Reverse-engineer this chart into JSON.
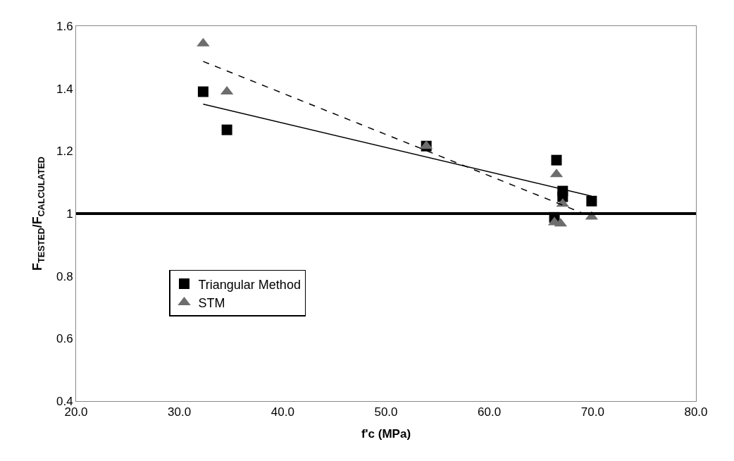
{
  "chart_data": {
    "type": "scatter",
    "xlabel": "f'c (MPa)",
    "ylabel": "F$_{TESTED}$/F$_{CALCULATED}$",
    "xlim": [
      20,
      80
    ],
    "xticks": [
      {
        "value": 20,
        "label": "20.0"
      },
      {
        "value": 30,
        "label": "30.0"
      },
      {
        "value": 40,
        "label": "40.0"
      },
      {
        "value": 50,
        "label": "50.0"
      },
      {
        "value": 60,
        "label": "60.0"
      },
      {
        "value": 70,
        "label": "70.0"
      },
      {
        "value": 80,
        "label": "80.0"
      }
    ],
    "ylim": [
      0.4,
      1.6
    ],
    "yticks": [
      0.4,
      0.6,
      0.8,
      1,
      1.2,
      1.4,
      1.6
    ],
    "grid": false,
    "legend": "left",
    "series": [
      {
        "name": "Triangular Method",
        "marker": "square",
        "color": "#000000",
        "x": [
          32.3,
          34.6,
          53.9,
          66.5,
          67.1,
          67.1,
          66.3,
          69.9
        ],
        "values": [
          1.39,
          1.268,
          1.216,
          1.171,
          1.072,
          1.054,
          0.988,
          1.04
        ]
      },
      {
        "name": "STM",
        "marker": "triangle",
        "color": "#6d6d6d",
        "x": [
          32.3,
          34.6,
          53.9,
          66.5,
          67.1,
          66.3,
          66.9,
          69.9
        ],
        "values": [
          1.544,
          1.39,
          1.216,
          1.126,
          1.031,
          0.972,
          0.968,
          0.99
        ]
      },
      {
        "type": "line",
        "line_style": "solid",
        "color": "#000000",
        "x": [
          32.3,
          69.9
        ],
        "values": [
          1.35,
          1.056
        ]
      },
      {
        "type": "line",
        "line_style": "dashed",
        "color": "#000000",
        "x": [
          32.3,
          69.9
        ],
        "values": [
          1.487,
          0.99
        ]
      }
    ],
    "ref_lines": [
      {
        "axis": "y",
        "value": 1,
        "color": "#000000"
      }
    ]
  }
}
